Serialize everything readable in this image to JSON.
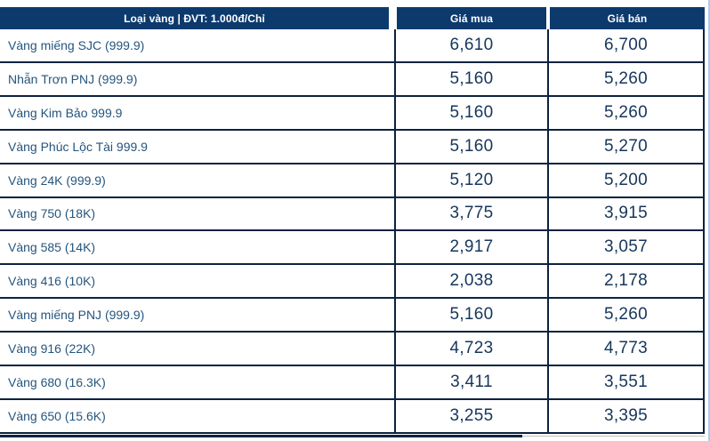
{
  "widget": {
    "header": {
      "type_label": "Loại vàng | ĐVT: 1.000đ/Chỉ",
      "buy_label": "Giá mua",
      "sell_label": "Giá bán"
    },
    "rows": [
      {
        "name": "Vàng miếng SJC (999.9)",
        "buy": "6,610",
        "sell": "6,700"
      },
      {
        "name": "Nhẫn Trơn PNJ (999.9)",
        "buy": "5,160",
        "sell": "5,260"
      },
      {
        "name": "Vàng Kim Bảo 999.9",
        "buy": "5,160",
        "sell": "5,260"
      },
      {
        "name": "Vàng Phúc Lộc Tài 999.9",
        "buy": "5,160",
        "sell": "5,270"
      },
      {
        "name": "Vàng 24K (999.9)",
        "buy": "5,120",
        "sell": "5,200"
      },
      {
        "name": "Vàng 750 (18K)",
        "buy": "3,775",
        "sell": "3,915"
      },
      {
        "name": "Vàng 585 (14K)",
        "buy": "2,917",
        "sell": "3,057"
      },
      {
        "name": "Vàng 416 (10K)",
        "buy": "2,038",
        "sell": "2,178"
      },
      {
        "name": "Vàng miếng PNJ (999.9)",
        "buy": "5,160",
        "sell": "5,260"
      },
      {
        "name": "Vàng 916 (22K)",
        "buy": "4,723",
        "sell": "4,773"
      },
      {
        "name": "Vàng 680 (16.3K)",
        "buy": "3,411",
        "sell": "3,551"
      },
      {
        "name": "Vàng 650 (15.6K)",
        "buy": "3,255",
        "sell": "3,395"
      }
    ]
  },
  "colors": {
    "header-bg": "#0d3a6d",
    "header-text": "#ffffff",
    "label-color": "#24557d",
    "number-color": "#16365c",
    "border-color": "#0d2240",
    "next-bar": "#0d2240",
    "edge-strip": "#a9cdea"
  }
}
